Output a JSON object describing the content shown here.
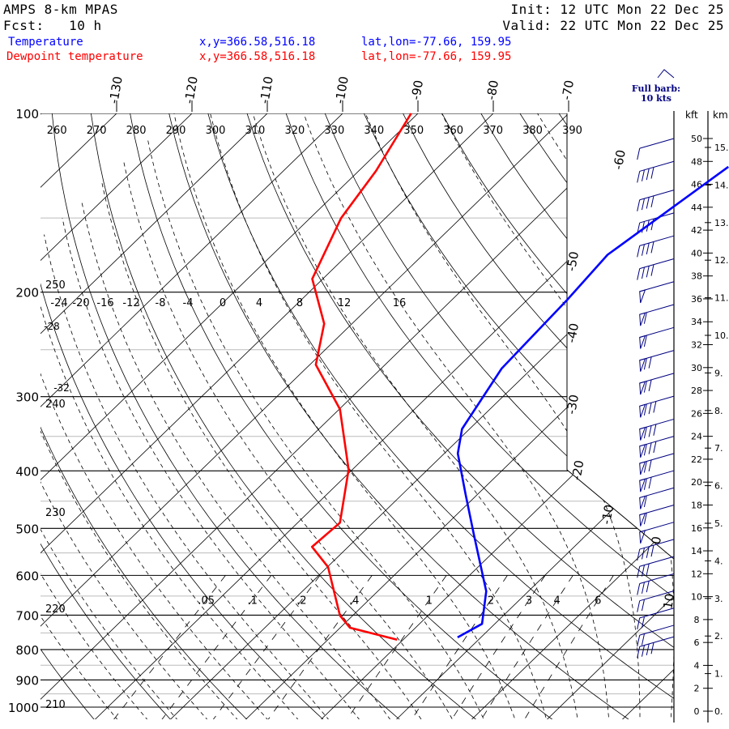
{
  "header": {
    "model": "AMPS 8-km MPAS",
    "fcst": "Fcst:   10 h",
    "init": "Init: 12 UTC Mon 22 Dec 25",
    "valid": "Valid: 22 UTC Mon 22 Dec 25"
  },
  "legend": [
    {
      "name": "Temperature",
      "xy": "x,y=366.58,516.18",
      "latlon": "lat,lon=-77.66, 159.95",
      "color": "#0000ff"
    },
    {
      "name": "Dewpoint temperature",
      "xy": "x,y=366.58,516.18",
      "latlon": "lat,lon=-77.66, 159.95",
      "color": "#ff0000"
    }
  ],
  "barb_key": {
    "line1": "Full barb:",
    "line2": "10 kts"
  },
  "chart_data": {
    "type": "line",
    "title": "Skew-T log-P sounding",
    "ylabel": "Pressure (hPa)",
    "ylim": [
      1000,
      100
    ],
    "pressure_labels": [
      100,
      200,
      300,
      400,
      500,
      600,
      700,
      800,
      900,
      1000
    ],
    "isotherm_labels_top": [
      -130,
      -120,
      -110,
      -100,
      -90,
      -80,
      -70
    ],
    "isotherm_labels_side": [
      {
        "t": -60,
        "p": 110
      },
      {
        "t": -50,
        "p": 178
      },
      {
        "t": -40,
        "p": 235
      },
      {
        "t": -30,
        "p": 310
      },
      {
        "t": -20,
        "p": 400
      },
      {
        "t": -10,
        "p": 475
      },
      {
        "t": 0,
        "p": 525
      },
      {
        "t": 10,
        "p": 665
      }
    ],
    "theta_labels_top": [
      260,
      270,
      280,
      290,
      300,
      310,
      320,
      330,
      340,
      350,
      360,
      370,
      380,
      390
    ],
    "theta_labels_left": [
      250,
      240,
      230,
      220,
      210
    ],
    "theta_w_labels": [
      -24,
      -20,
      -16,
      -12,
      -8,
      -4,
      0,
      4,
      8,
      12,
      16
    ],
    "theta_w_side_labels": [
      "-28",
      "-32"
    ],
    "mixing_ratio_labels": [
      ".05",
      ".1",
      ".2",
      ".4",
      "1",
      "2",
      "3",
      "4",
      "6"
    ],
    "mixing_ratio_values": [
      0.05,
      0.1,
      0.2,
      0.4,
      1,
      2,
      3,
      4,
      6
    ],
    "series": [
      {
        "name": "Temperature",
        "color": "#0000ff",
        "points": [
          {
            "p": 123,
            "t": -41.5
          },
          {
            "p": 173,
            "t": -45.5
          },
          {
            "p": 206,
            "t": -44.7
          },
          {
            "p": 269,
            "t": -44.0
          },
          {
            "p": 340,
            "t": -41.0
          },
          {
            "p": 374,
            "t": -38.2
          },
          {
            "p": 438,
            "t": -31.6
          },
          {
            "p": 512,
            "t": -25.0
          },
          {
            "p": 638,
            "t": -15.6
          },
          {
            "p": 724,
            "t": -11.7
          },
          {
            "p": 763,
            "t": -13.1
          }
        ]
      },
      {
        "name": "Dewpoint temperature",
        "color": "#ff0000",
        "points": [
          {
            "p": 100,
            "t": -90.9
          },
          {
            "p": 125,
            "t": -87.7
          },
          {
            "p": 150,
            "t": -85.9
          },
          {
            "p": 190,
            "t": -81.4
          },
          {
            "p": 226,
            "t": -73.7
          },
          {
            "p": 265,
            "t": -69.2
          },
          {
            "p": 315,
            "t": -59.9
          },
          {
            "p": 398,
            "t": -50.5
          },
          {
            "p": 489,
            "t": -44.4
          },
          {
            "p": 537,
            "t": -44.8
          },
          {
            "p": 581,
            "t": -39.9
          },
          {
            "p": 701,
            "t": -31.7
          },
          {
            "p": 735,
            "t": -28.7
          },
          {
            "p": 770,
            "t": -20.8
          }
        ]
      }
    ],
    "height_axis": {
      "kft_label": "kft",
      "km_label": "km",
      "kft_ticks": [
        0,
        2,
        4,
        6,
        8,
        10,
        12,
        14,
        16,
        18,
        20,
        22,
        24,
        26,
        28,
        30,
        32,
        34,
        36,
        38,
        40,
        42,
        44,
        46,
        48,
        50
      ],
      "km_ticks": [
        "0.",
        "1.",
        "2.",
        "3.",
        "4.",
        "5.",
        "6.",
        "7.",
        "8.",
        "9.",
        "10.",
        "11.",
        "12.",
        "13.",
        "14.",
        "15."
      ]
    },
    "winds": [
      {
        "kft": 50,
        "kts": 10
      },
      {
        "kft": 48,
        "kts": 40
      },
      {
        "kft": 45.5,
        "kts": 40
      },
      {
        "kft": 43.5,
        "kts": 40
      },
      {
        "kft": 41.5,
        "kts": 40
      },
      {
        "kft": 39.5,
        "kts": 40
      },
      {
        "kft": 37.5,
        "kts": 50
      },
      {
        "kft": 35.5,
        "kts": 60
      },
      {
        "kft": 33.5,
        "kts": 60
      },
      {
        "kft": 31.5,
        "kts": 70
      },
      {
        "kft": 29.5,
        "kts": 70
      },
      {
        "kft": 27.5,
        "kts": 80
      },
      {
        "kft": 25.5,
        "kts": 80
      },
      {
        "kft": 24,
        "kts": 80
      },
      {
        "kft": 22.5,
        "kts": 70
      },
      {
        "kft": 21,
        "kts": 70
      },
      {
        "kft": 19.5,
        "kts": 60
      },
      {
        "kft": 18,
        "kts": 60
      },
      {
        "kft": 16.5,
        "kts": 50
      },
      {
        "kft": 15,
        "kts": 40
      },
      {
        "kft": 13.5,
        "kts": 30
      },
      {
        "kft": 12,
        "kts": 30
      },
      {
        "kft": 10.5,
        "kts": 20
      },
      {
        "kft": 9,
        "kts": 20
      },
      {
        "kft": 7.5,
        "kts": 20
      },
      {
        "kft": 6.5,
        "kts": 40
      }
    ]
  }
}
